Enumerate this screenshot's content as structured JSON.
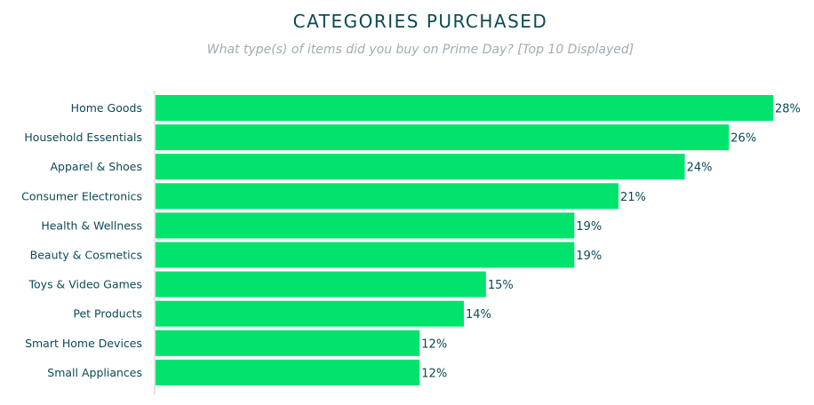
{
  "chart_data": {
    "type": "bar",
    "orientation": "horizontal",
    "title": "CATEGORIES PURCHASED",
    "subtitle": "What type(s) of items did you buy on Prime Day? [Top 10 Displayed]",
    "categories": [
      "Home Goods",
      "Household Essentials",
      "Apparel & Shoes",
      "Consumer Electronics",
      "Health & Wellness",
      "Beauty & Cosmetics",
      "Toys & Video Games",
      "Pet Products",
      "Smart Home Devices",
      "Small Appliances"
    ],
    "values": [
      28,
      26,
      24,
      21,
      19,
      19,
      15,
      14,
      12,
      12
    ],
    "value_labels": [
      "28%",
      "26%",
      "24%",
      "21%",
      "19%",
      "19%",
      "15%",
      "14%",
      "12%",
      "12%"
    ],
    "xlim": [
      0,
      28
    ],
    "grid": false,
    "legend": "none",
    "colors": {
      "bar": "#00e36d",
      "text": "#0c4a53",
      "subtitle": "#9eaeb2",
      "axis": "#d6dcde"
    }
  }
}
